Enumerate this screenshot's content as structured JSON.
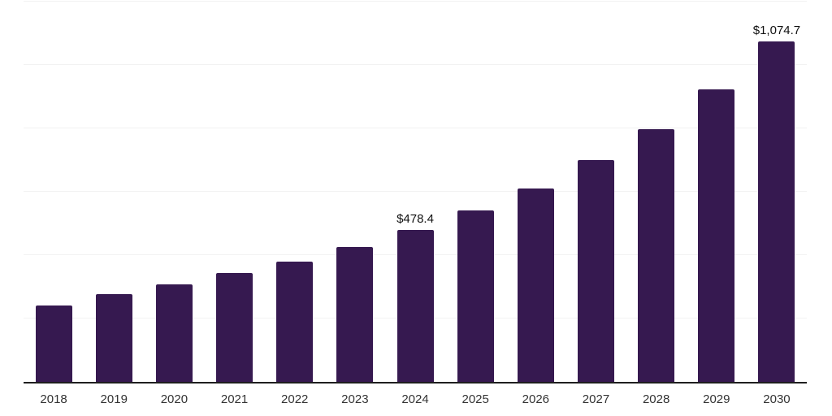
{
  "chart_data": {
    "type": "bar",
    "title": "",
    "xlabel": "",
    "ylabel": "",
    "categories": [
      "2018",
      "2019",
      "2020",
      "2021",
      "2022",
      "2023",
      "2024",
      "2025",
      "2026",
      "2027",
      "2028",
      "2029",
      "2030"
    ],
    "values": [
      240.7,
      276.3,
      306.9,
      342.5,
      380.7,
      426.6,
      478.4,
      541.2,
      610.0,
      699.1,
      798.4,
      923.2,
      1074.7
    ],
    "data_labels": [
      "",
      "",
      "",
      "",
      "",
      "",
      "$478.4",
      "",
      "",
      "",
      "",
      "",
      "$1,074.7"
    ],
    "ylim": [
      0,
      1200
    ],
    "gridlines": [
      200,
      400,
      600,
      800,
      1000,
      1200
    ],
    "grid": "horizontal",
    "legend": "none",
    "colors": {
      "bar": "#361950",
      "gridline": "#f2f2f2",
      "axis": "#1f1f1f",
      "tick_label": "#333333",
      "data_label": "#111111",
      "background": "#ffffff"
    }
  }
}
